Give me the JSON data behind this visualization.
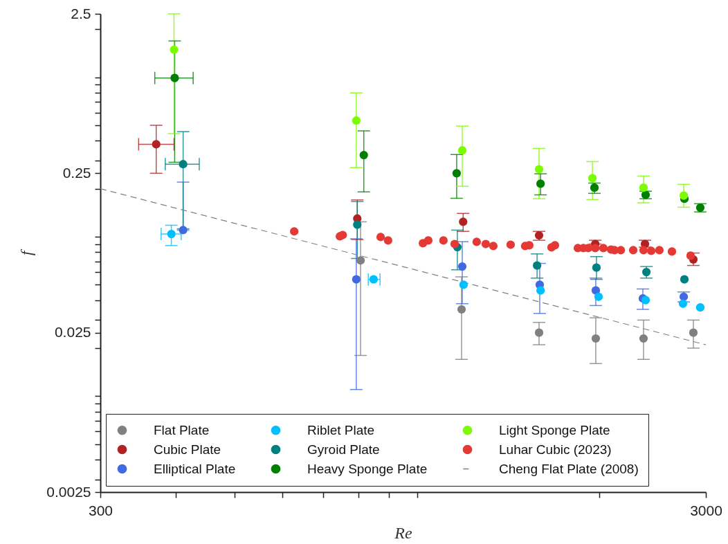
{
  "chart_data": {
    "type": "scatter",
    "xlabel": "Re",
    "ylabel": "f",
    "log": "xy",
    "grid": false,
    "legend": "bottom",
    "marker": "circle",
    "xlim": [
      300,
      3000
    ],
    "xticks": [
      300,
      {
        "value": 400,
        "label": null
      },
      {
        "value": 500,
        "label": null
      },
      {
        "value": 600,
        "label": null
      },
      {
        "value": 700,
        "label": null
      },
      {
        "value": 800,
        "label": null
      },
      {
        "value": 900,
        "label": null
      },
      {
        "value": 1000,
        "label": null
      },
      {
        "value": 2000,
        "label": null
      },
      3000
    ],
    "ylim": [
      0.0025,
      2.5
    ],
    "yticks": [
      0.0025,
      {
        "value": 0.003,
        "label": null
      },
      {
        "value": 0.004,
        "label": null
      },
      {
        "value": 0.005,
        "label": null
      },
      {
        "value": 0.006,
        "label": null
      },
      {
        "value": 0.007,
        "label": null
      },
      {
        "value": 0.008,
        "label": null
      },
      {
        "value": 0.009,
        "label": null
      },
      {
        "value": 0.01,
        "label": null
      },
      {
        "value": 0.02,
        "label": null
      },
      0.025,
      {
        "value": 0.03,
        "label": null
      },
      {
        "value": 0.04,
        "label": null
      },
      {
        "value": 0.05,
        "label": null
      },
      {
        "value": 0.06,
        "label": null
      },
      {
        "value": 0.07,
        "label": null
      },
      {
        "value": 0.08,
        "label": null
      },
      {
        "value": 0.09,
        "label": null
      },
      {
        "value": 0.1,
        "label": null
      },
      {
        "value": 0.2,
        "label": null
      },
      0.25,
      {
        "value": 0.3,
        "label": null
      },
      {
        "value": 0.4,
        "label": null
      },
      {
        "value": 0.5,
        "label": null
      },
      {
        "value": 0.6,
        "label": null
      },
      {
        "value": 0.7,
        "label": null
      },
      {
        "value": 0.8,
        "label": null
      },
      {
        "value": 0.9,
        "label": null
      },
      {
        "value": 1,
        "label": null
      },
      {
        "value": 2,
        "label": null
      },
      2.5
    ],
    "series": [
      {
        "name": "Flat Plate",
        "color": "#808080",
        "x": [
          807,
          1185,
          1591,
          1974,
          2367,
          2861
        ],
        "values": [
          0.071,
          0.035,
          0.025,
          0.023,
          0.023,
          0.025
        ],
        "errors": [
          [
            0.018,
            0.124
          ],
          [
            0.017,
            0.056
          ],
          [
            0.021,
            0.029
          ],
          [
            0.016,
            0.031
          ],
          [
            0.017,
            0.03
          ],
          [
            0.02,
            0.03
          ]
        ]
      },
      {
        "name": "Cubic Plate",
        "color": "#b22222",
        "x": [
          371,
          797,
          1192,
          1591,
          1970,
          2380,
          2861
        ],
        "values": [
          0.38,
          0.13,
          0.124,
          0.102,
          0.09,
          0.09,
          0.072
        ],
        "errors": [
          [
            0.25,
            0.5
          ],
          [
            0.096,
            0.17
          ],
          [
            0.108,
            0.14
          ],
          [
            0.095,
            0.108
          ],
          [
            0.09,
            0.095
          ],
          [
            0.086,
            0.095
          ],
          [
            0.066,
            0.079
          ]
        ],
        "xerrors": [
          [
            347,
            397
          ],
          null,
          null,
          null,
          null,
          null,
          null
        ]
      },
      {
        "name": "Elliptical Plate",
        "color": "#4169e1",
        "x": [
          411,
          794,
          1188,
          1595,
          1974,
          2361,
          2758
        ],
        "values": [
          0.11,
          0.054,
          0.065,
          0.05,
          0.046,
          0.041,
          0.042
        ],
        "errors": [
          [
            0.11,
            0.22
          ],
          [
            0.011,
            0.097
          ],
          [
            0.038,
            0.093
          ],
          [
            0.033,
            0.068
          ],
          [
            0.037,
            0.055
          ],
          [
            0.035,
            0.047
          ],
          [
            0.039,
            0.045
          ]
        ]
      },
      {
        "name": "Riblet Plate",
        "color": "#00bfff",
        "x": [
          393,
          848,
          1194,
          1600,
          1995,
          2386,
          2750,
          2937
        ],
        "values": [
          0.104,
          0.054,
          0.05,
          0.046,
          0.042,
          0.04,
          0.038,
          0.036
        ],
        "errors": [
          [
            0.088,
            0.118
          ],
          null,
          null,
          null,
          null,
          null,
          null,
          null
        ],
        "xerrors": [
          [
            378,
            408
          ],
          [
            831,
            869
          ],
          null,
          null,
          null,
          null,
          null,
          null
        ]
      },
      {
        "name": "Gyroid Plate",
        "color": "#008080",
        "x": [
          411,
          797,
          1166,
          1579,
          1979,
          2393,
          2765
        ],
        "values": [
          0.285,
          0.119,
          0.086,
          0.066,
          0.064,
          0.06,
          0.054
        ],
        "errors": [
          [
            0.112,
            0.456
          ],
          [
            0.073,
            0.166
          ],
          [
            0.062,
            0.11
          ],
          [
            0.055,
            0.078
          ],
          [
            0.054,
            0.075
          ],
          [
            0.055,
            0.065
          ],
          null
        ],
        "xerrors": [
          [
            384,
            437
          ],
          null,
          null,
          null,
          null,
          null,
          null
        ]
      },
      {
        "name": "Heavy Sponge Plate",
        "color": "#008000",
        "x": [
          398,
          817,
          1163,
          1600,
          1964,
          2386,
          2765,
          2937
        ],
        "values": [
          0.99,
          0.325,
          0.25,
          0.215,
          0.203,
          0.183,
          0.173,
          0.152
        ],
        "errors": [
          [
            0.293,
            1.69
          ],
          [
            0.191,
            0.461
          ],
          [
            0.174,
            0.328
          ],
          [
            0.183,
            0.248
          ],
          [
            0.187,
            0.217
          ],
          [
            0.173,
            0.193
          ],
          null,
          [
            0.143,
            0.161
          ]
        ],
        "xerrors": [
          [
            369,
            427
          ],
          null,
          null,
          null,
          null,
          null,
          null,
          null
        ]
      },
      {
        "name": "Light Sponge Plate",
        "color": "#7cfc00",
        "x": [
          397,
          794,
          1188,
          1591,
          1949,
          2367,
          2758
        ],
        "values": [
          1.49,
          0.535,
          0.348,
          0.265,
          0.233,
          0.203,
          0.181
        ],
        "errors": [
          [
            0.443,
            2.5
          ],
          [
            0.271,
            0.798
          ],
          [
            0.207,
            0.494
          ],
          [
            0.173,
            0.358
          ],
          [
            0.171,
            0.296
          ],
          [
            0.163,
            0.24
          ],
          [
            0.153,
            0.213
          ]
        ]
      },
      {
        "name": "Luhar Cubic (2023)",
        "color": "#e53935",
        "x": [
          627,
          746,
          754,
          871,
          896,
          1023,
          1044,
          1106,
          1154,
          1255,
          1299,
          1337,
          1428,
          1509,
          1533,
          1668,
          1690,
          1844,
          1883,
          1918,
          1970,
          2032,
          2092,
          2120,
          2171,
          2276,
          2367,
          2437,
          2514,
          2637,
          2831
        ],
        "values": [
          0.108,
          0.1005,
          0.1025,
          0.0995,
          0.0947,
          0.091,
          0.0947,
          0.0947,
          0.09,
          0.0928,
          0.09,
          0.0874,
          0.0891,
          0.0874,
          0.0883,
          0.0857,
          0.0883,
          0.0848,
          0.0848,
          0.0848,
          0.0848,
          0.0848,
          0.0831,
          0.0823,
          0.0823,
          0.0823,
          0.0823,
          0.0815,
          0.0823,
          0.0807,
          0.076
        ]
      },
      {
        "name": "Cheng Flat Plate (2008)",
        "color": "#808080",
        "type": "line",
        "line_style": "dashed",
        "marker": "none",
        "x": [
          300,
          3000
        ],
        "values": [
          0.2,
          0.021
        ]
      }
    ]
  }
}
